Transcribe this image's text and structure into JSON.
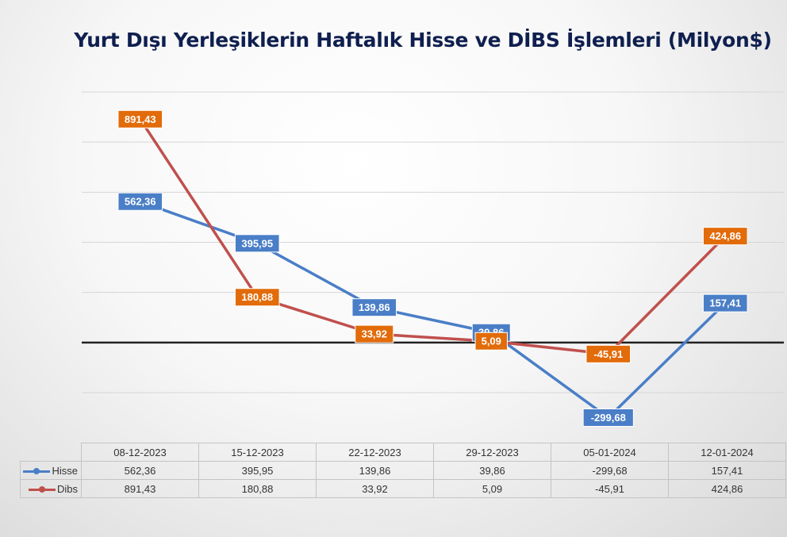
{
  "chart_data": {
    "type": "line",
    "title": "Yurt Dışı Yerleşiklerin Haftalık Hisse ve DİBS İşlemleri (Milyon$)",
    "categories": [
      "08-12-2023",
      "15-12-2023",
      "22-12-2023",
      "29-12-2023",
      "05-01-2024",
      "12-01-2024"
    ],
    "series": [
      {
        "name": "Hisse",
        "color": "#4a7ec7",
        "values": [
          562.36,
          395.95,
          139.86,
          39.86,
          -299.68,
          157.41
        ],
        "labels": [
          "562,36",
          "395,95",
          "139,86",
          "39,86",
          "-299,68",
          "157,41"
        ]
      },
      {
        "name": "Dibs",
        "color": "#c0504d",
        "label_color": "#e26b0a",
        "values": [
          891.43,
          180.88,
          33.92,
          5.09,
          -45.91,
          424.86
        ],
        "labels": [
          "891,43",
          "180,88",
          "33,92",
          "5,09",
          "-45,91",
          "424,86"
        ]
      }
    ],
    "ylim": [
      -200,
      1000
    ],
    "grid": true,
    "legend": "data-table",
    "xlabel": "",
    "ylabel": ""
  }
}
